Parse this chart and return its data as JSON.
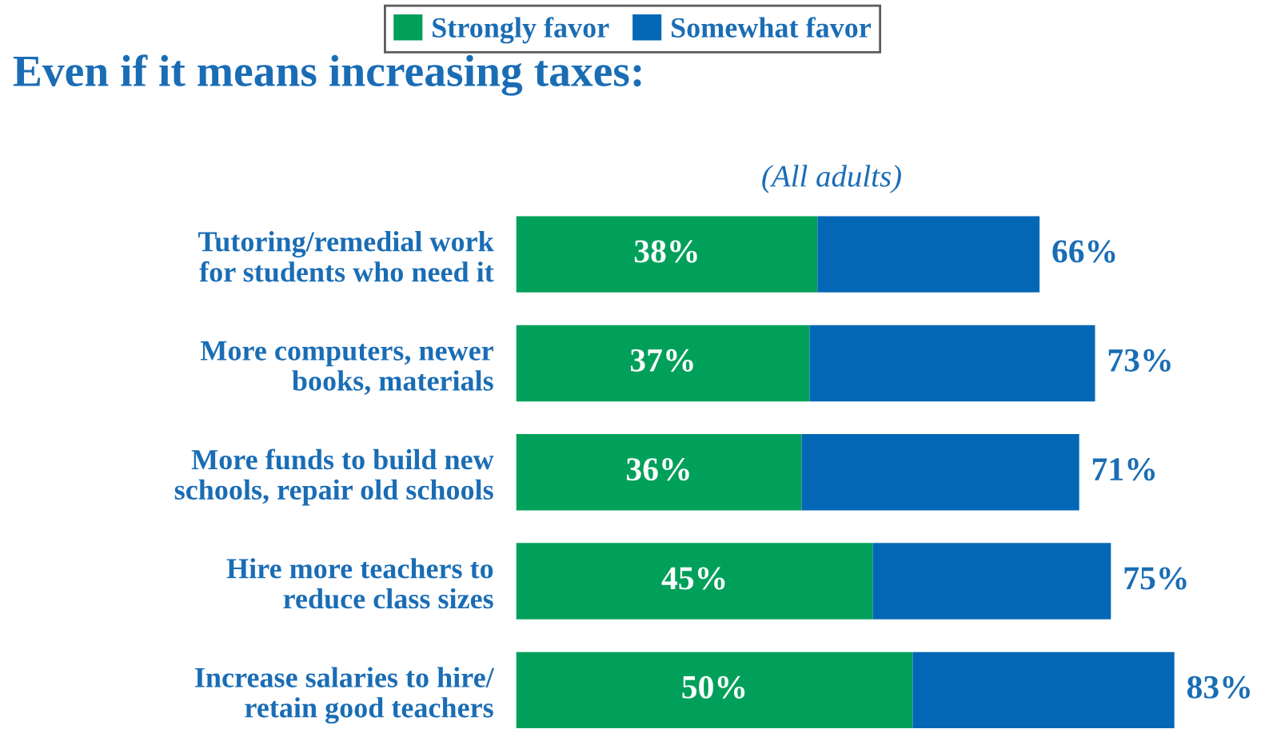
{
  "chart_data": {
    "type": "bar",
    "orientation": "horizontal",
    "stacked": true,
    "title": "Even if it means increasing taxes:",
    "subtitle": "(All adults)",
    "categories": [
      "Tutoring/remedial work\nfor students who need it",
      "More computers, newer\nbooks, materials",
      "More funds to build new\nschools, repair old schools",
      "Hire more teachers to\nreduce class sizes",
      "Increase salaries to hire/\nretain good teachers"
    ],
    "series": [
      {
        "name": "Strongly favor",
        "color": "#00a05a",
        "values": [
          38,
          37,
          36,
          45,
          50
        ],
        "value_labels": [
          "38%",
          "37%",
          "36%",
          "45%",
          "50%"
        ]
      },
      {
        "name": "Somewhat favor",
        "color": "#0467b5",
        "values": [
          28,
          36,
          35,
          30,
          33
        ]
      }
    ],
    "totals": [
      "66%",
      "73%",
      "71%",
      "75%",
      "83%"
    ],
    "legend": "top",
    "grid": false
  }
}
